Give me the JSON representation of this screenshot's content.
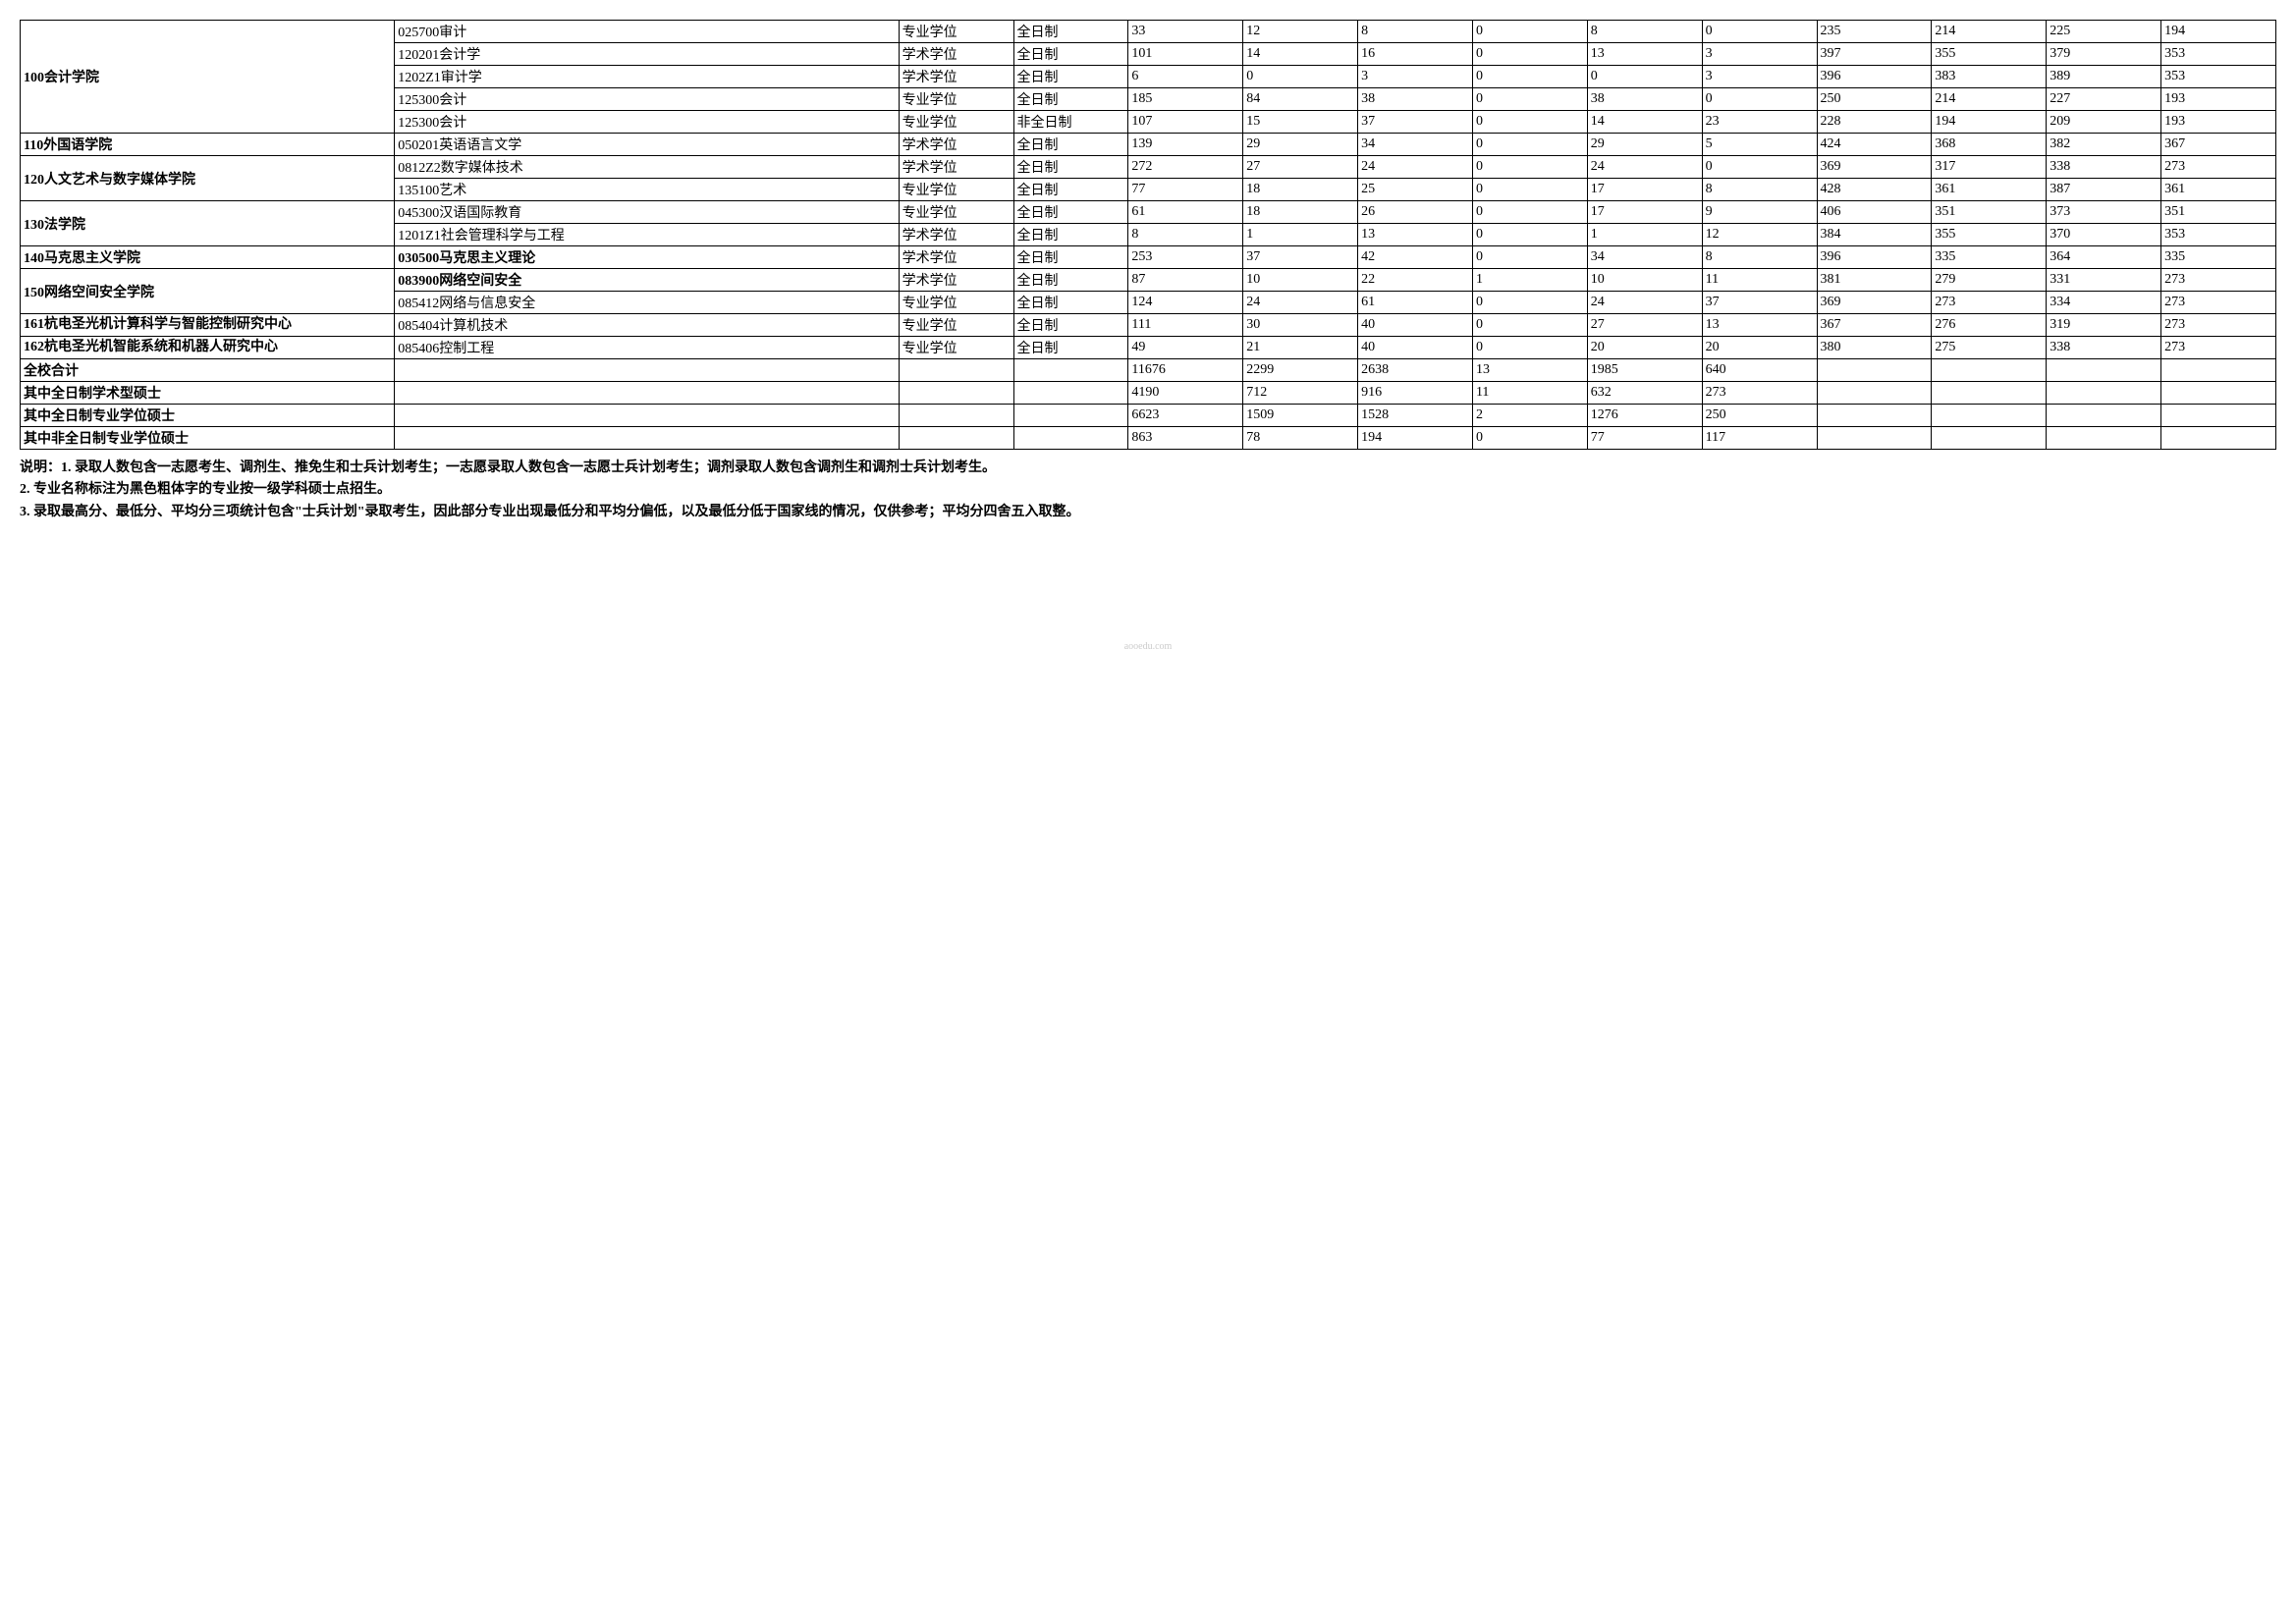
{
  "rows": [
    {
      "dept": "100会计学院",
      "deptRowspan": 5,
      "major": "025700审计",
      "type": "专业学位",
      "mode": "全日制",
      "c": [
        "33",
        "12",
        "8",
        "0",
        "8",
        "0",
        "235",
        "214",
        "225",
        "194"
      ]
    },
    {
      "major": "120201会计学",
      "type": "学术学位",
      "mode": "全日制",
      "c": [
        "101",
        "14",
        "16",
        "0",
        "13",
        "3",
        "397",
        "355",
        "379",
        "353"
      ]
    },
    {
      "major": "1202Z1审计学",
      "type": "学术学位",
      "mode": "全日制",
      "c": [
        "6",
        "0",
        "3",
        "0",
        "0",
        "3",
        "396",
        "383",
        "389",
        "353"
      ]
    },
    {
      "major": "125300会计",
      "type": "专业学位",
      "mode": "全日制",
      "c": [
        "185",
        "84",
        "38",
        "0",
        "38",
        "0",
        "250",
        "214",
        "227",
        "193"
      ]
    },
    {
      "major": "125300会计",
      "type": "专业学位",
      "mode": "非全日制",
      "c": [
        "107",
        "15",
        "37",
        "0",
        "14",
        "23",
        "228",
        "194",
        "209",
        "193"
      ]
    },
    {
      "dept": "110外国语学院",
      "deptRowspan": 1,
      "major": "050201英语语言文学",
      "type": "学术学位",
      "mode": "全日制",
      "c": [
        "139",
        "29",
        "34",
        "0",
        "29",
        "5",
        "424",
        "368",
        "382",
        "367"
      ]
    },
    {
      "dept": "120人文艺术与数字媒体学院",
      "deptRowspan": 2,
      "major": "0812Z2数字媒体技术",
      "type": "学术学位",
      "mode": "全日制",
      "c": [
        "272",
        "27",
        "24",
        "0",
        "24",
        "0",
        "369",
        "317",
        "338",
        "273"
      ]
    },
    {
      "major": "135100艺术",
      "type": "专业学位",
      "mode": "全日制",
      "c": [
        "77",
        "18",
        "25",
        "0",
        "17",
        "8",
        "428",
        "361",
        "387",
        "361"
      ]
    },
    {
      "dept": "130法学院",
      "deptRowspan": 2,
      "major": "045300汉语国际教育",
      "type": "专业学位",
      "mode": "全日制",
      "c": [
        "61",
        "18",
        "26",
        "0",
        "17",
        "9",
        "406",
        "351",
        "373",
        "351"
      ]
    },
    {
      "major": "1201Z1社会管理科学与工程",
      "type": "学术学位",
      "mode": "全日制",
      "c": [
        "8",
        "1",
        "13",
        "0",
        "1",
        "12",
        "384",
        "355",
        "370",
        "353"
      ]
    },
    {
      "dept": "140马克思主义学院",
      "deptRowspan": 1,
      "major": "030500马克思主义理论",
      "majorBold": true,
      "type": "学术学位",
      "mode": "全日制",
      "c": [
        "253",
        "37",
        "42",
        "0",
        "34",
        "8",
        "396",
        "335",
        "364",
        "335"
      ]
    },
    {
      "dept": "150网络空间安全学院",
      "deptRowspan": 2,
      "major": "083900网络空间安全",
      "majorBold": true,
      "type": "学术学位",
      "mode": "全日制",
      "c": [
        "87",
        "10",
        "22",
        "1",
        "10",
        "11",
        "381",
        "279",
        "331",
        "273"
      ]
    },
    {
      "major": "085412网络与信息安全",
      "type": "专业学位",
      "mode": "全日制",
      "c": [
        "124",
        "24",
        "61",
        "0",
        "24",
        "37",
        "369",
        "273",
        "334",
        "273"
      ]
    },
    {
      "dept": "161杭电圣光机计算科学与智能控制研究中心",
      "deptRowspan": 1,
      "deptWrap": true,
      "major": "085404计算机技术",
      "type": "专业学位",
      "mode": "全日制",
      "c": [
        "111",
        "30",
        "40",
        "0",
        "27",
        "13",
        "367",
        "276",
        "319",
        "273"
      ]
    },
    {
      "dept": "162杭电圣光机智能系统和机器人研究中心",
      "deptRowspan": 1,
      "deptWrap": true,
      "major": "085406控制工程",
      "type": "专业学位",
      "mode": "全日制",
      "c": [
        "49",
        "21",
        "40",
        "0",
        "20",
        "20",
        "380",
        "275",
        "338",
        "273"
      ]
    }
  ],
  "totals": [
    {
      "label": "全校合计",
      "c": [
        "11676",
        "2299",
        "2638",
        "13",
        "1985",
        "640",
        "",
        "",
        "",
        ""
      ]
    },
    {
      "label": "其中全日制学术型硕士",
      "c": [
        "4190",
        "712",
        "916",
        "11",
        "632",
        "273",
        "",
        "",
        "",
        ""
      ]
    },
    {
      "label": "其中全日制专业学位硕士",
      "c": [
        "6623",
        "1509",
        "1528",
        "2",
        "1276",
        "250",
        "",
        "",
        "",
        ""
      ]
    },
    {
      "label": "其中非全日制专业学位硕士",
      "c": [
        "863",
        "78",
        "194",
        "0",
        "77",
        "117",
        "",
        "",
        "",
        ""
      ]
    }
  ],
  "notes": [
    "说明：1. 录取人数包含一志愿考生、调剂生、推免生和士兵计划考生；一志愿录取人数包含一志愿士兵计划考生；调剂录取人数包含调剂生和调剂士兵计划考生。",
    "2. 专业名称标注为黑色粗体字的专业按一级学科硕士点招生。",
    "3. 录取最高分、最低分、平均分三项统计包含\"士兵计划\"录取考生，因此部分专业出现最低分和平均分偏低，以及最低分低于国家线的情况，仅供参考；平均分四舍五入取整。"
  ],
  "watermark": "aooedu.com"
}
